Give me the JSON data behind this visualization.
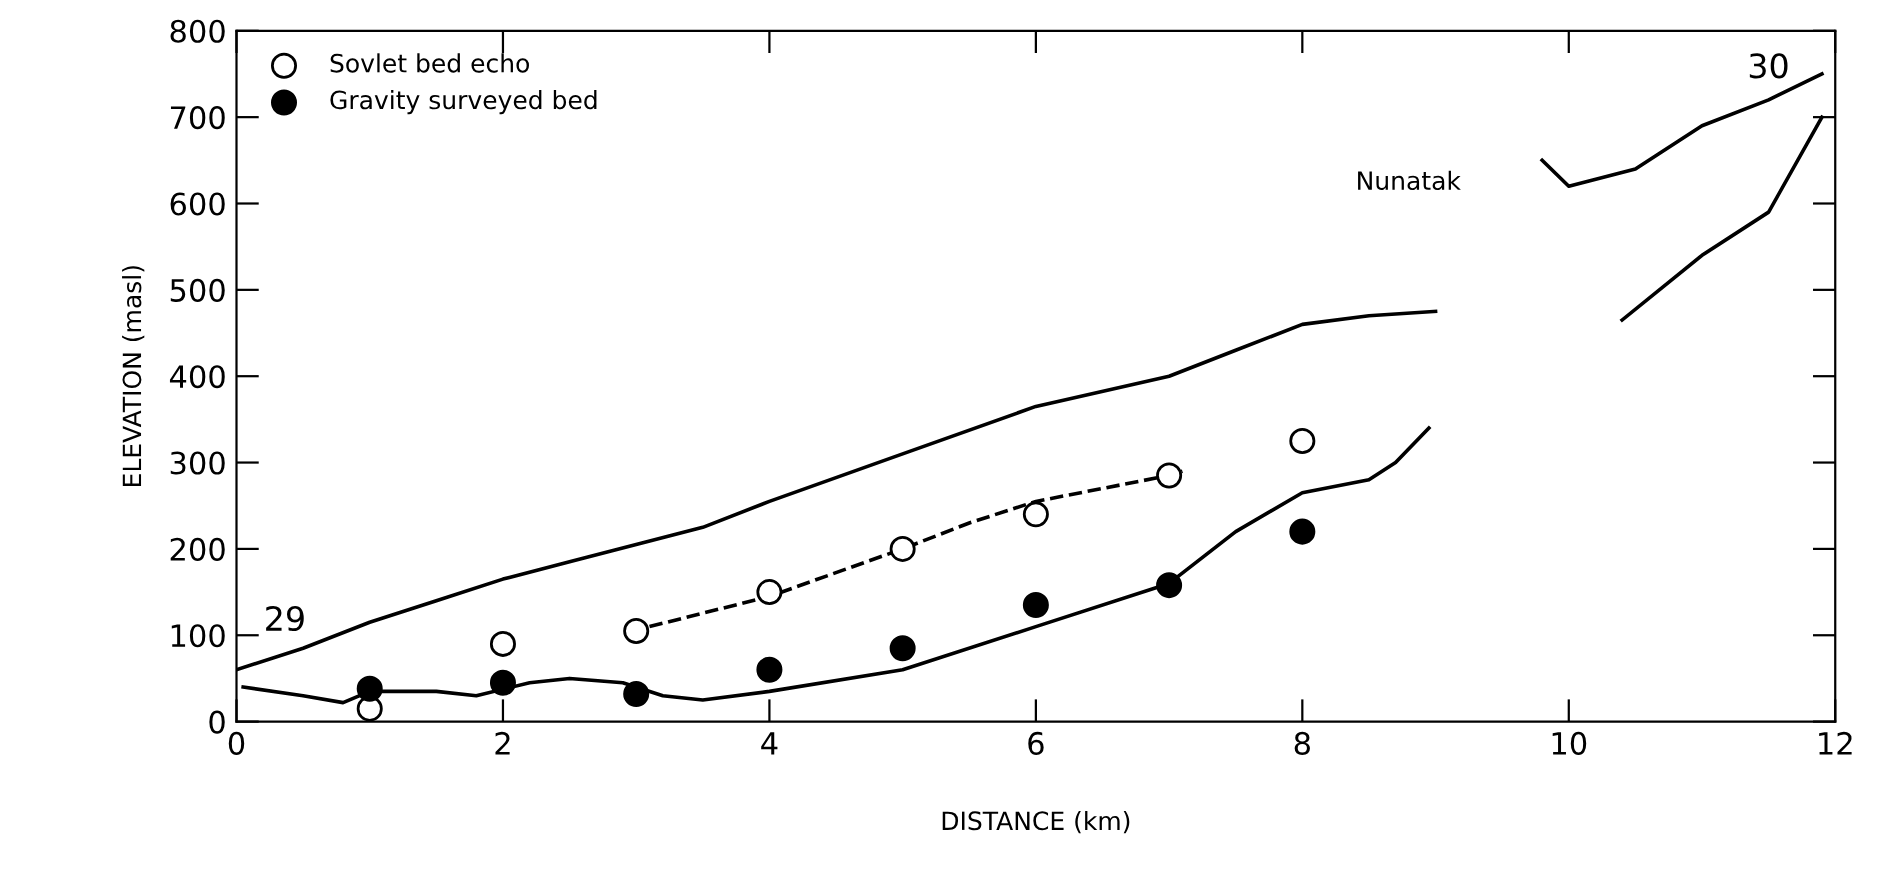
{
  "chart_data": {
    "type": "line",
    "xlabel": "DISTANCE (km)",
    "ylabel": "ELEVATION (masl)",
    "xlim": [
      0,
      12
    ],
    "ylim": [
      0,
      800
    ],
    "xticks": [
      0,
      2,
      4,
      6,
      8,
      10,
      12
    ],
    "yticks": [
      0,
      100,
      200,
      300,
      400,
      500,
      600,
      700,
      800
    ],
    "grid": false,
    "legend": "top left",
    "series": [
      {
        "color": "#000000",
        "line_style": "solid",
        "x": [
          0,
          0.5,
          1,
          1.5,
          2,
          2.5,
          3,
          3.5,
          4,
          5,
          6,
          7,
          7.5,
          8,
          8.5,
          9
        ],
        "values": [
          60,
          85,
          115,
          140,
          165,
          185,
          205,
          225,
          255,
          310,
          365,
          400,
          430,
          460,
          470,
          475
        ]
      },
      {
        "color": "#000000",
        "line_style": "solid",
        "x": [
          0.05,
          0.5,
          0.8,
          1,
          1.5,
          1.8,
          2.2,
          2.5,
          2.9,
          3.2,
          3.5,
          4,
          5,
          6,
          7,
          7.5,
          8,
          8.5,
          8.7,
          8.95
        ],
        "values": [
          40,
          30,
          22,
          35,
          35,
          30,
          45,
          50,
          45,
          30,
          25,
          35,
          60,
          110,
          160,
          220,
          265,
          280,
          300,
          340
        ]
      },
      {
        "color": "#000000",
        "line_style": "solid",
        "x": [
          9.8,
          10,
          10.5,
          11,
          11.5,
          11.9
        ],
        "values": [
          650,
          620,
          640,
          690,
          720,
          750
        ]
      },
      {
        "color": "#000000",
        "line_style": "solid",
        "x": [
          10.4,
          11,
          11.5,
          11.9
        ],
        "values": [
          465,
          540,
          590,
          700
        ]
      },
      {
        "color": "#000000",
        "line_style": "dashed",
        "x": [
          3.1,
          4,
          5,
          5.5,
          6,
          7,
          7.1
        ],
        "values": [
          110,
          145,
          200,
          230,
          255,
          285,
          290
        ]
      },
      {
        "type": "scatter",
        "name": "Sovlet bed echo",
        "color": "#ffffff",
        "marker": "circle",
        "x": [
          1,
          2,
          3,
          4,
          5,
          6,
          7,
          8
        ],
        "values": [
          15,
          90,
          105,
          150,
          200,
          240,
          285,
          325
        ]
      },
      {
        "type": "scatter",
        "name": "Gravity surveyed bed",
        "color": "#000000",
        "marker": "circle",
        "x": [
          1,
          2,
          3,
          4,
          5,
          6,
          7,
          8
        ],
        "values": [
          38,
          45,
          32,
          60,
          85,
          135,
          158,
          220
        ]
      }
    ],
    "annotations": [
      "29",
      "30",
      "Nunatak"
    ]
  }
}
